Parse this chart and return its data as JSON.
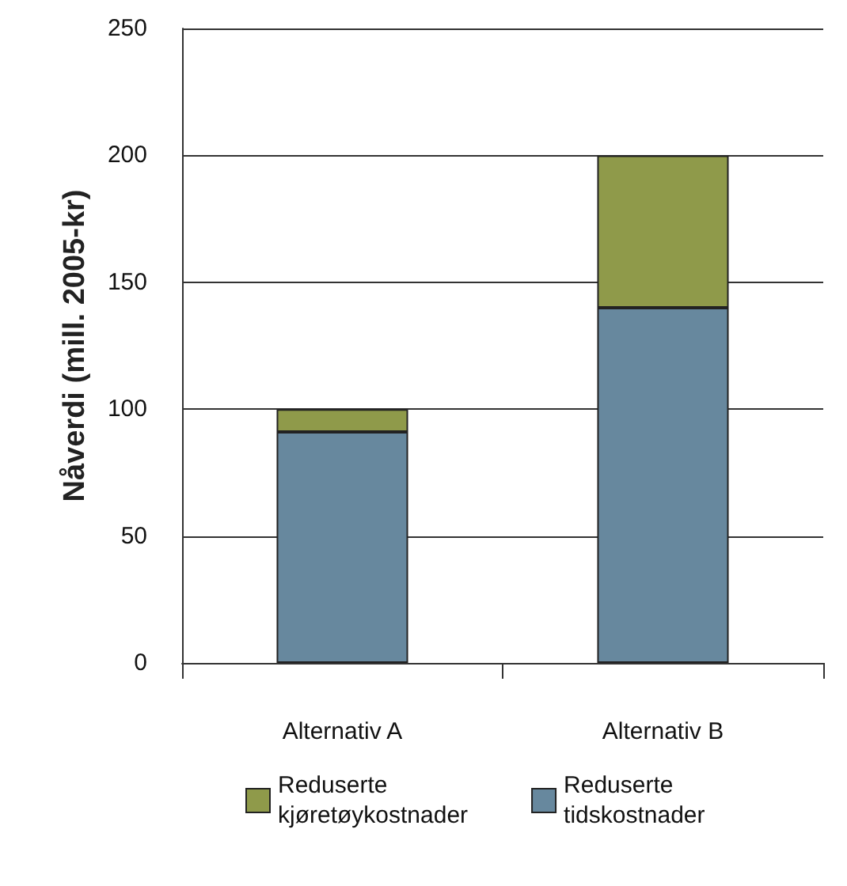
{
  "chart_data": {
    "type": "bar",
    "stacked": true,
    "ylabel": "Nåverdi (mill. 2005-kr)",
    "categories": [
      "Alternativ A",
      "Alternativ B"
    ],
    "series": [
      {
        "name": "Reduserte\ntidskostnader",
        "color": "#67889e",
        "values": [
          91,
          140
        ]
      },
      {
        "name": "Reduserte\nkjøretøykostnader",
        "color": "#8f9a4a",
        "values": [
          9,
          60
        ]
      }
    ],
    "ylim": [
      0,
      250
    ],
    "yticks": [
      0,
      50,
      100,
      150,
      200,
      250
    ],
    "grid": "y",
    "legend": "bottom"
  }
}
